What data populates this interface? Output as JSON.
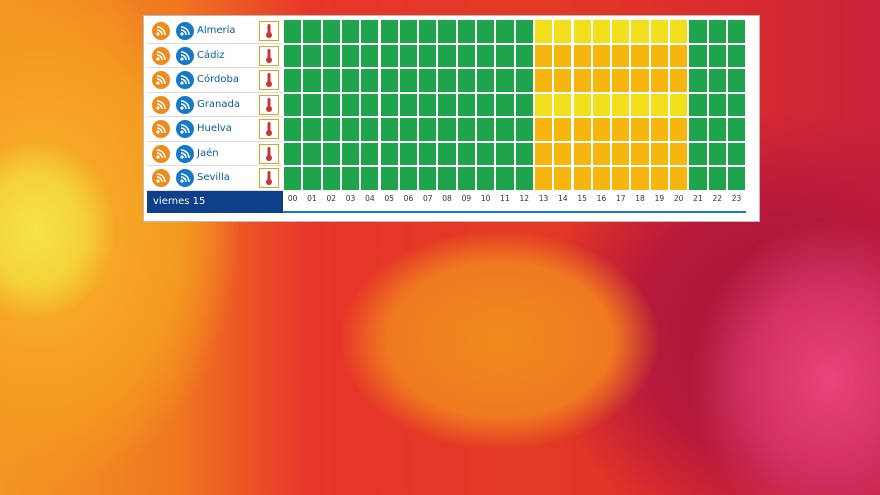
{
  "table": {
    "date": "viernes 15",
    "hours": [
      "00",
      "01",
      "02",
      "03",
      "04",
      "05",
      "06",
      "07",
      "08",
      "09",
      "10",
      "11",
      "12",
      "13",
      "14",
      "15",
      "16",
      "17",
      "18",
      "19",
      "20",
      "21",
      "22",
      "23"
    ],
    "rows": [
      {
        "name": "Almería",
        "colors": [
          "#1ea54b",
          "#1ea54b",
          "#1ea54b",
          "#1ea54b",
          "#1ea54b",
          "#1ea54b",
          "#1ea54b",
          "#1ea54b",
          "#1ea54b",
          "#1ea54b",
          "#1ea54b",
          "#1ea54b",
          "#1ea54b",
          "#f3e01c",
          "#f3e01c",
          "#f3e01c",
          "#f3e01c",
          "#f3e01c",
          "#f3e01c",
          "#f3e01c",
          "#f3e01c",
          "#1ea54b",
          "#1ea54b",
          "#1ea54b"
        ]
      },
      {
        "name": "Cádiz",
        "colors": [
          "#1ea54b",
          "#1ea54b",
          "#1ea54b",
          "#1ea54b",
          "#1ea54b",
          "#1ea54b",
          "#1ea54b",
          "#1ea54b",
          "#1ea54b",
          "#1ea54b",
          "#1ea54b",
          "#1ea54b",
          "#1ea54b",
          "#f6b60e",
          "#f6b60e",
          "#f6b60e",
          "#f6b60e",
          "#f6b60e",
          "#f6b60e",
          "#f6b60e",
          "#f6b60e",
          "#1ea54b",
          "#1ea54b",
          "#1ea54b"
        ]
      },
      {
        "name": "Córdoba",
        "colors": [
          "#1ea54b",
          "#1ea54b",
          "#1ea54b",
          "#1ea54b",
          "#1ea54b",
          "#1ea54b",
          "#1ea54b",
          "#1ea54b",
          "#1ea54b",
          "#1ea54b",
          "#1ea54b",
          "#1ea54b",
          "#1ea54b",
          "#f6b60e",
          "#f6b60e",
          "#f6b60e",
          "#f6b60e",
          "#f6b60e",
          "#f6b60e",
          "#f6b60e",
          "#f6b60e",
          "#1ea54b",
          "#1ea54b",
          "#1ea54b"
        ]
      },
      {
        "name": "Granada",
        "colors": [
          "#1ea54b",
          "#1ea54b",
          "#1ea54b",
          "#1ea54b",
          "#1ea54b",
          "#1ea54b",
          "#1ea54b",
          "#1ea54b",
          "#1ea54b",
          "#1ea54b",
          "#1ea54b",
          "#1ea54b",
          "#1ea54b",
          "#f3e01c",
          "#f3e01c",
          "#f3e01c",
          "#f3e01c",
          "#f3e01c",
          "#f3e01c",
          "#f3e01c",
          "#f3e01c",
          "#1ea54b",
          "#1ea54b",
          "#1ea54b"
        ]
      },
      {
        "name": "Huelva",
        "colors": [
          "#1ea54b",
          "#1ea54b",
          "#1ea54b",
          "#1ea54b",
          "#1ea54b",
          "#1ea54b",
          "#1ea54b",
          "#1ea54b",
          "#1ea54b",
          "#1ea54b",
          "#1ea54b",
          "#1ea54b",
          "#1ea54b",
          "#f6b60e",
          "#f6b60e",
          "#f6b60e",
          "#f6b60e",
          "#f6b60e",
          "#f6b60e",
          "#f6b60e",
          "#f6b60e",
          "#1ea54b",
          "#1ea54b",
          "#1ea54b"
        ]
      },
      {
        "name": "Jaén",
        "colors": [
          "#1ea54b",
          "#1ea54b",
          "#1ea54b",
          "#1ea54b",
          "#1ea54b",
          "#1ea54b",
          "#1ea54b",
          "#1ea54b",
          "#1ea54b",
          "#1ea54b",
          "#1ea54b",
          "#1ea54b",
          "#1ea54b",
          "#f6b60e",
          "#f6b60e",
          "#f6b60e",
          "#f6b60e",
          "#f6b60e",
          "#f6b60e",
          "#f6b60e",
          "#f6b60e",
          "#1ea54b",
          "#1ea54b",
          "#1ea54b"
        ]
      },
      {
        "name": "Sevilla",
        "colors": [
          "#1ea54b",
          "#1ea54b",
          "#1ea54b",
          "#1ea54b",
          "#1ea54b",
          "#1ea54b",
          "#1ea54b",
          "#1ea54b",
          "#1ea54b",
          "#1ea54b",
          "#1ea54b",
          "#1ea54b",
          "#1ea54b",
          "#f6b60e",
          "#f6b60e",
          "#f6b60e",
          "#f6b60e",
          "#f6b60e",
          "#f6b60e",
          "#f6b60e",
          "#f6b60e",
          "#1ea54b",
          "#1ea54b",
          "#1ea54b"
        ]
      }
    ]
  }
}
